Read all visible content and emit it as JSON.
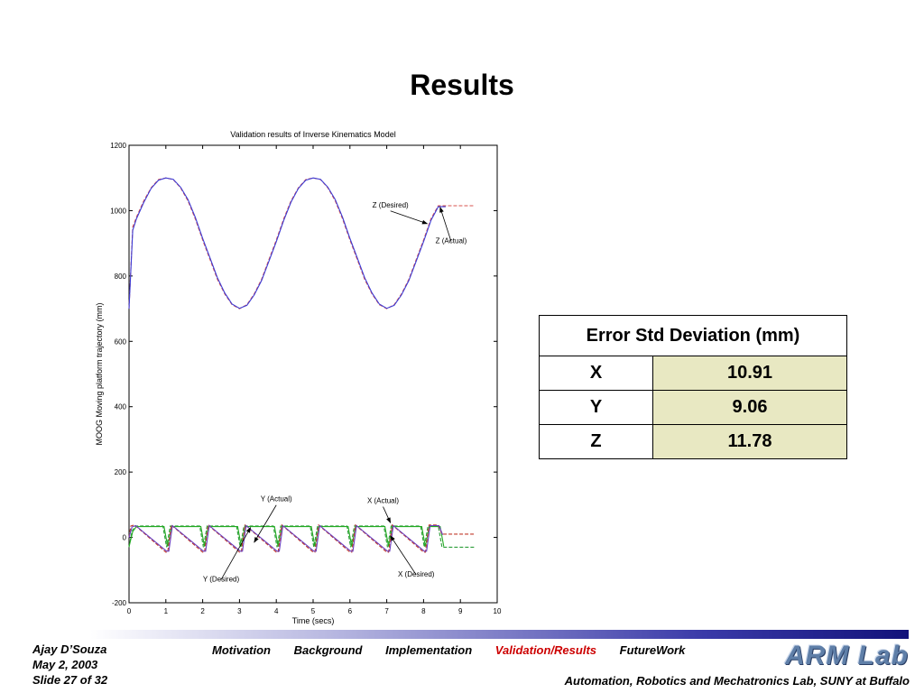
{
  "slide": {
    "title": "Results"
  },
  "chart_data": {
    "type": "line",
    "title": "Validation results of Inverse Kinematics Model",
    "xlabel": "Time (secs)",
    "ylabel": "MOOG Moving platform trajectory (mm)",
    "xlim": [
      0,
      10
    ],
    "ylim": [
      -200,
      1200
    ],
    "xticks": [
      "0",
      "1",
      "2",
      "3",
      "4",
      "5",
      "6",
      "7",
      "8",
      "9",
      "10"
    ],
    "yticks": [
      "-200",
      "0",
      "200",
      "400",
      "600",
      "800",
      "1000",
      "1200"
    ],
    "grid": false,
    "series": [
      {
        "name": "Z (Desired)",
        "style": "dashed",
        "color": "#d9534f",
        "x": [
          0,
          0.1,
          0.2,
          0.4,
          0.6,
          0.8,
          1.0,
          1.2,
          1.4,
          1.6,
          1.8,
          2.0,
          2.2,
          2.4,
          2.6,
          2.8,
          3.0,
          3.2,
          3.4,
          3.6,
          3.8,
          4.0,
          4.2,
          4.4,
          4.6,
          4.8,
          5.0,
          5.2,
          5.4,
          5.6,
          5.8,
          6.0,
          6.2,
          6.4,
          6.6,
          6.8,
          7.0,
          7.2,
          7.4,
          7.6,
          7.8,
          8.0,
          8.2,
          8.4,
          8.6,
          9.0,
          9.4
        ],
        "y": [
          700,
          950,
          980,
          1030,
          1070,
          1095,
          1100,
          1095,
          1070,
          1030,
          975,
          910,
          850,
          790,
          745,
          712,
          700,
          712,
          745,
          790,
          850,
          910,
          975,
          1030,
          1070,
          1095,
          1100,
          1095,
          1070,
          1030,
          975,
          910,
          850,
          790,
          745,
          712,
          700,
          712,
          745,
          790,
          850,
          910,
          975,
          1015,
          1015,
          1015,
          1015
        ]
      },
      {
        "name": "Z (Actual)",
        "style": "solid",
        "color": "#3b3bd6",
        "x": [
          0,
          0.1,
          0.2,
          0.4,
          0.6,
          0.8,
          1.0,
          1.2,
          1.4,
          1.6,
          1.8,
          2.0,
          2.2,
          2.4,
          2.6,
          2.8,
          3.0,
          3.2,
          3.4,
          3.6,
          3.8,
          4.0,
          4.2,
          4.4,
          4.6,
          4.8,
          5.0,
          5.2,
          5.4,
          5.6,
          5.8,
          6.0,
          6.2,
          6.4,
          6.6,
          6.8,
          7.0,
          7.2,
          7.4,
          7.6,
          7.8,
          8.0,
          8.2,
          8.4,
          8.6
        ],
        "y": [
          700,
          940,
          975,
          1025,
          1068,
          1093,
          1100,
          1096,
          1072,
          1034,
          980,
          915,
          855,
          795,
          748,
          714,
          701,
          710,
          742,
          786,
          845,
          905,
          970,
          1026,
          1068,
          1093,
          1100,
          1096,
          1072,
          1034,
          980,
          915,
          855,
          795,
          748,
          714,
          701,
          710,
          742,
          786,
          845,
          905,
          970,
          1012,
          1012
        ]
      },
      {
        "name": "Y (Desired)",
        "style": "dashed",
        "color": "#2e9e3a",
        "x": [
          0,
          0.08,
          0.18,
          0.28,
          0.92,
          1.02,
          1.12,
          1.92,
          2.02,
          2.12,
          2.92,
          3.02,
          3.12,
          3.92,
          4.02,
          4.12,
          4.92,
          5.02,
          5.12,
          5.92,
          6.02,
          6.12,
          6.92,
          7.02,
          7.12,
          7.92,
          8.02,
          8.12,
          8.4,
          8.5,
          9.4
        ],
        "y": [
          -30,
          20,
          35,
          35,
          35,
          -30,
          35,
          35,
          -30,
          35,
          35,
          -30,
          35,
          35,
          -30,
          35,
          35,
          -30,
          35,
          35,
          -30,
          35,
          35,
          -30,
          35,
          35,
          -30,
          35,
          35,
          -30,
          -30
        ]
      },
      {
        "name": "Y (Actual)",
        "style": "solid",
        "color": "#22aa22",
        "x": [
          0,
          0.1,
          0.2,
          0.3,
          0.95,
          1.05,
          1.15,
          1.95,
          2.05,
          2.15,
          2.95,
          3.05,
          3.15,
          3.95,
          4.05,
          4.15,
          4.95,
          5.05,
          5.15,
          5.95,
          6.05,
          6.15,
          6.95,
          7.05,
          7.15,
          7.95,
          8.05,
          8.15,
          8.45,
          8.55
        ],
        "y": [
          -28,
          18,
          33,
          33,
          33,
          -28,
          33,
          33,
          -28,
          33,
          33,
          -28,
          33,
          33,
          -28,
          33,
          33,
          -28,
          33,
          33,
          -28,
          33,
          33,
          -28,
          33,
          33,
          -28,
          33,
          33,
          -28
        ]
      },
      {
        "name": "X (Desired)",
        "style": "dashed",
        "color": "#c0392b",
        "x": [
          0,
          0.05,
          0.15,
          1.0,
          1.05,
          1.15,
          2.0,
          2.05,
          2.15,
          3.0,
          3.05,
          3.15,
          4.0,
          4.05,
          4.15,
          5.0,
          5.05,
          5.15,
          6.0,
          6.05,
          6.15,
          7.0,
          7.05,
          7.15,
          8.0,
          8.05,
          8.15,
          8.4,
          8.5,
          9.4
        ],
        "y": [
          0,
          35,
          38,
          -45,
          -45,
          38,
          -45,
          -45,
          38,
          -45,
          -45,
          38,
          -45,
          -45,
          38,
          -45,
          -45,
          38,
          -45,
          -45,
          38,
          -45,
          -45,
          38,
          -45,
          -45,
          38,
          38,
          10,
          10
        ]
      },
      {
        "name": "X (Actual)",
        "style": "solid",
        "color": "#6a3fbf",
        "x": [
          0,
          0.08,
          0.18,
          1.02,
          1.08,
          1.18,
          2.02,
          2.08,
          2.18,
          3.02,
          3.08,
          3.18,
          4.02,
          4.08,
          4.18,
          5.02,
          5.08,
          5.18,
          6.02,
          6.08,
          6.18,
          7.02,
          7.08,
          7.18,
          8.02,
          8.08,
          8.18,
          8.42,
          8.52
        ],
        "y": [
          0,
          32,
          36,
          -42,
          -42,
          36,
          -42,
          -42,
          36,
          -42,
          -42,
          36,
          -42,
          -42,
          36,
          -42,
          -42,
          36,
          -42,
          -42,
          36,
          -42,
          -42,
          36,
          -42,
          -42,
          36,
          36,
          8
        ]
      }
    ],
    "annotations": [
      {
        "text": "Z (Desired)",
        "x": 7.1,
        "y": 1010,
        "ax": 8.1,
        "ay": 960
      },
      {
        "text": "Z (Actual)",
        "x": 8.75,
        "y": 900,
        "ax": 8.45,
        "ay": 1010
      },
      {
        "text": "Y (Actual)",
        "x": 4.0,
        "y": 110,
        "ax": 3.4,
        "ay": -15
      },
      {
        "text": "Y (Desired)",
        "x": 2.5,
        "y": -135,
        "ax": 3.3,
        "ay": 30
      },
      {
        "text": "X (Actual)",
        "x": 6.9,
        "y": 105,
        "ax": 7.1,
        "ay": 45
      },
      {
        "text": "X (Desired)",
        "x": 7.8,
        "y": -120,
        "ax": 7.1,
        "ay": 5
      }
    ]
  },
  "table": {
    "header": "Error Std Deviation (mm)",
    "rows": [
      {
        "label": "X",
        "value": "10.91"
      },
      {
        "label": "Y",
        "value": "9.06"
      },
      {
        "label": "Z",
        "value": "11.78"
      }
    ]
  },
  "footer": {
    "author": "Ajay D’Souza",
    "date": "May 2, 2003",
    "slide": "Slide 27 of 32",
    "nav": [
      "Motivation",
      "Background",
      "Implementation",
      "Validation/Results",
      "FutureWork"
    ],
    "active": "Validation/Results",
    "logo": "ARM Lab",
    "lab": "Automation, Robotics and Mechatronics Lab, SUNY at Buffalo"
  }
}
